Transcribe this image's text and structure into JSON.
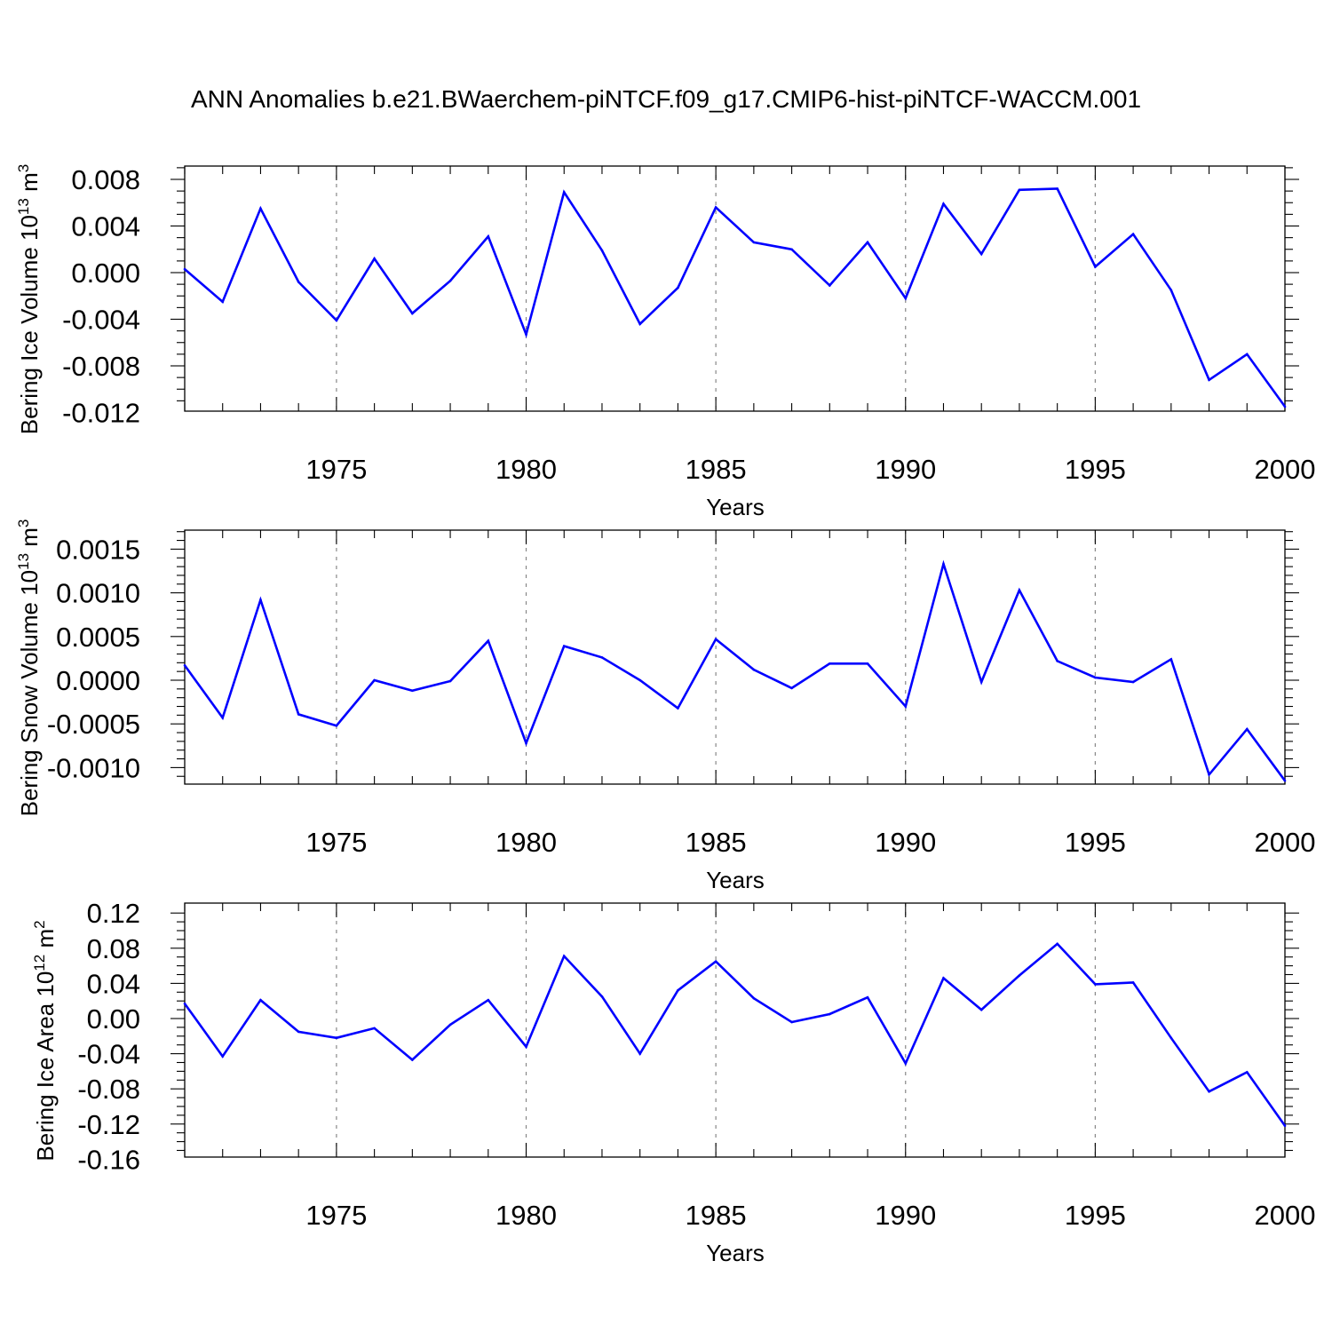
{
  "title": "ANN Anomalies b.e21.BWaerchem-piNTCF.f09_g17.CMIP6-hist-piNTCF-WACCM.001",
  "chart_data": [
    {
      "type": "line",
      "panel": "ice-volume",
      "ylabel": "Bering Ice Volume",
      "ylabel_unit_base": "10",
      "ylabel_unit_exp": "13",
      "ylabel_unit_rest": "m",
      "ylabel_unit_exp2": "3",
      "xlabel": "Years",
      "xlim": [
        1971,
        2000
      ],
      "ylim": [
        -0.012,
        0.009
      ],
      "xticks": [
        1975,
        1980,
        1985,
        1990,
        1995,
        2000
      ],
      "yticks": [
        0.008,
        0.004,
        0.0,
        -0.004,
        -0.008,
        -0.012
      ],
      "ytick_labels": [
        "0.008",
        "0.004",
        "0.000",
        "-0.004",
        "-0.008",
        "-0.012"
      ],
      "grid": "dashed vertical at major x ticks",
      "line_color": "#0000ff",
      "x": [
        1971,
        1972,
        1973,
        1974,
        1975,
        1976,
        1977,
        1978,
        1979,
        1980,
        1981,
        1982,
        1983,
        1984,
        1985,
        1986,
        1987,
        1988,
        1989,
        1990,
        1991,
        1992,
        1993,
        1994,
        1995,
        1996,
        1997,
        1998,
        1999,
        2000
      ],
      "values": [
        0.0003,
        -0.0025,
        0.0055,
        -0.0008,
        -0.0041,
        0.0012,
        -0.0035,
        -0.0007,
        0.0031,
        -0.0053,
        0.0069,
        0.0019,
        -0.0044,
        -0.0013,
        0.0056,
        0.0026,
        0.002,
        -0.0011,
        0.0026,
        -0.0022,
        0.0059,
        0.0016,
        0.0071,
        0.0072,
        0.0005,
        0.0033,
        -0.0015,
        -0.0092,
        -0.007,
        -0.0115
      ]
    },
    {
      "type": "line",
      "panel": "snow-volume",
      "ylabel": "Bering Snow Volume",
      "ylabel_unit_base": "10",
      "ylabel_unit_exp": "13",
      "ylabel_unit_rest": "m",
      "ylabel_unit_exp2": "3",
      "xlabel": "Years",
      "xlim": [
        1971,
        2000
      ],
      "ylim": [
        -0.0012,
        0.0017
      ],
      "xticks": [
        1975,
        1980,
        1985,
        1990,
        1995,
        2000
      ],
      "yticks": [
        0.0015,
        0.001,
        0.0005,
        0.0,
        -0.0005,
        -0.001
      ],
      "ytick_labels": [
        "0.0015",
        "0.0010",
        "0.0005",
        "0.0000",
        "-0.0005",
        "-0.0010"
      ],
      "grid": "dashed vertical at major x ticks",
      "line_color": "#0000ff",
      "x": [
        1971,
        1972,
        1973,
        1974,
        1975,
        1976,
        1977,
        1978,
        1979,
        1980,
        1981,
        1982,
        1983,
        1984,
        1985,
        1986,
        1987,
        1988,
        1989,
        1990,
        1991,
        1992,
        1993,
        1994,
        1995,
        1996,
        1997,
        1998,
        1999,
        2000
      ],
      "values": [
        0.00017,
        -0.00043,
        0.00092,
        -0.00039,
        -0.00052,
        0.0,
        -0.00012,
        -1e-05,
        0.00045,
        -0.00072,
        0.00039,
        0.00026,
        0.0,
        -0.00032,
        0.00047,
        0.00012,
        -9e-05,
        0.00019,
        0.00019,
        -0.0003,
        0.00133,
        -2e-05,
        0.00103,
        0.00022,
        3e-05,
        -2e-05,
        0.00024,
        -0.00108,
        -0.00056,
        -0.00115
      ]
    },
    {
      "type": "line",
      "panel": "ice-area",
      "ylabel": "Bering Ice Area",
      "ylabel_unit_base": "10",
      "ylabel_unit_exp": "12",
      "ylabel_unit_rest": "m",
      "ylabel_unit_exp2": "2",
      "xlabel": "Years",
      "xlim": [
        1971,
        2000
      ],
      "ylim": [
        -0.16,
        0.12
      ],
      "xticks": [
        1975,
        1980,
        1985,
        1990,
        1995,
        2000
      ],
      "yticks": [
        0.12,
        0.08,
        0.04,
        0.0,
        -0.04,
        -0.08,
        -0.12,
        -0.16
      ],
      "ytick_labels": [
        "0.12",
        "0.08",
        "0.04",
        "0.00",
        "-0.04",
        "-0.08",
        "-0.12",
        "-0.16"
      ],
      "grid": "dashed vertical at major x ticks",
      "line_color": "#0000ff",
      "x": [
        1971,
        1972,
        1973,
        1974,
        1975,
        1976,
        1977,
        1978,
        1979,
        1980,
        1981,
        1982,
        1983,
        1984,
        1985,
        1986,
        1987,
        1988,
        1989,
        1990,
        1991,
        1992,
        1993,
        1994,
        1995,
        1996,
        1997,
        1998,
        1999,
        2000
      ],
      "values": [
        0.017,
        -0.043,
        0.021,
        -0.015,
        -0.022,
        -0.011,
        -0.047,
        -0.007,
        0.021,
        -0.032,
        0.071,
        0.025,
        -0.04,
        0.032,
        0.065,
        0.023,
        -0.004,
        0.005,
        0.024,
        -0.051,
        0.046,
        0.01,
        0.049,
        0.085,
        0.039,
        0.041,
        -0.022,
        -0.083,
        -0.061,
        -0.122
      ]
    }
  ]
}
